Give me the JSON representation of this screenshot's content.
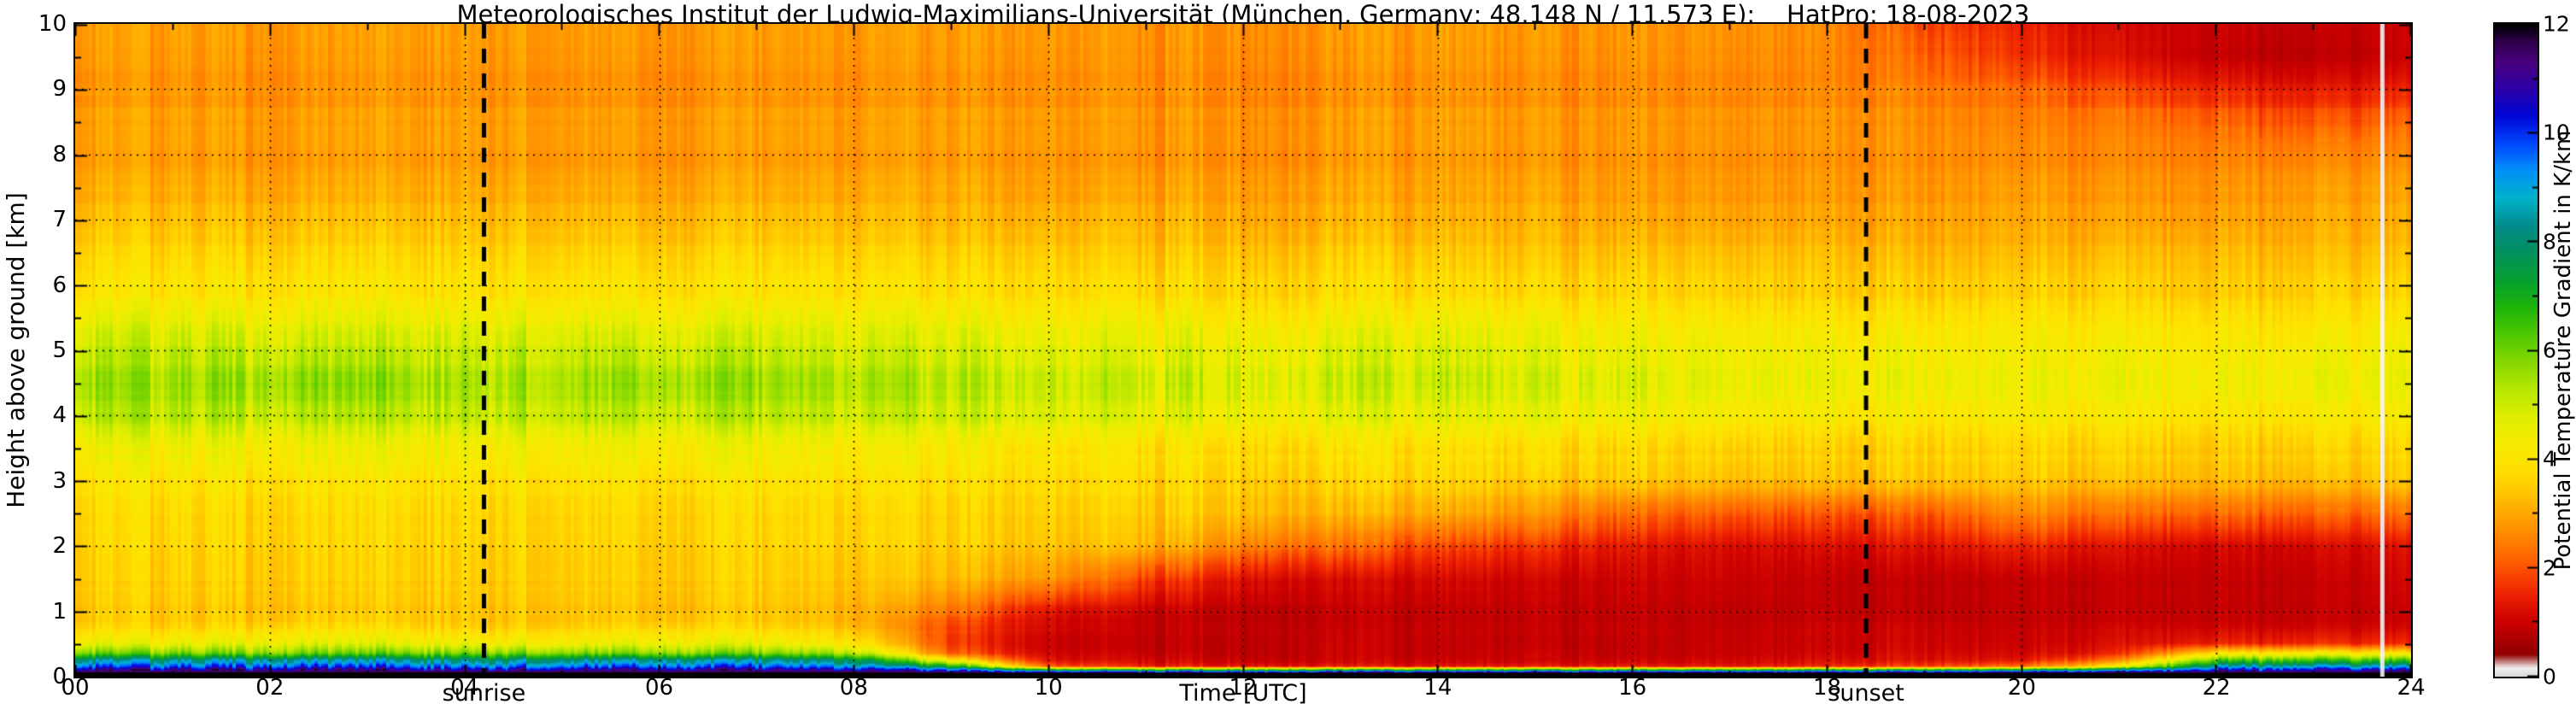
{
  "chart_data": {
    "type": "heatmap",
    "title": "Meteorologisches Institut der Ludwig-Maximilians-Universität (München, Germany; 48.148 N / 11.573 E):    HatPro: 18-08-2023",
    "xlabel": "Time [UTC]",
    "ylabel": "Height above ground [km]",
    "xlim": [
      0,
      24
    ],
    "ylim": [
      0,
      10
    ],
    "grid": "dotted",
    "x_major_ticks": [
      0,
      2,
      4,
      6,
      8,
      10,
      12,
      14,
      16,
      18,
      20,
      22,
      24
    ],
    "x_tick_labels": [
      "00",
      "02",
      "04",
      "06",
      "08",
      "10",
      "12",
      "14",
      "16",
      "18",
      "20",
      "22",
      "24"
    ],
    "x_minor_step": 1,
    "y_major_ticks": [
      0,
      1,
      2,
      3,
      4,
      5,
      6,
      7,
      8,
      9,
      10
    ],
    "y_tick_labels": [
      "0",
      "1",
      "2",
      "3",
      "4",
      "5",
      "6",
      "7",
      "8",
      "9",
      "10"
    ],
    "y_minor_step": 0.5,
    "colorbar": {
      "label": "Potential Temperature Gradient in K/km",
      "min": 0,
      "max": 12,
      "ticks": [
        0,
        2,
        4,
        6,
        8,
        10,
        12
      ],
      "tick_labels": [
        "0",
        "2",
        "4",
        "6",
        "8",
        "10",
        "12"
      ]
    },
    "colormap_stops": [
      [
        0.0,
        "#d9d9d9"
      ],
      [
        0.15,
        "#efefef"
      ],
      [
        0.4,
        "#900000"
      ],
      [
        1.0,
        "#cc0000"
      ],
      [
        1.5,
        "#ee2200"
      ],
      [
        2.1,
        "#ff5f00"
      ],
      [
        2.7,
        "#ff9100"
      ],
      [
        3.3,
        "#ffbf00"
      ],
      [
        3.8,
        "#ffdf00"
      ],
      [
        4.3,
        "#f6ec00"
      ],
      [
        4.8,
        "#dfee00"
      ],
      [
        5.3,
        "#b4e600"
      ],
      [
        5.8,
        "#84d800"
      ],
      [
        6.3,
        "#4cc800"
      ],
      [
        6.8,
        "#1db40a"
      ],
      [
        7.3,
        "#05a032"
      ],
      [
        7.8,
        "#00915f"
      ],
      [
        8.3,
        "#008c8c"
      ],
      [
        8.8,
        "#00b2cc"
      ],
      [
        9.3,
        "#0092f8"
      ],
      [
        9.8,
        "#0048ff"
      ],
      [
        10.3,
        "#0008d8"
      ],
      [
        10.8,
        "#2a00a8"
      ],
      [
        11.3,
        "#4b0080"
      ],
      [
        11.7,
        "#2e0048"
      ],
      [
        12.0,
        "#000000"
      ]
    ],
    "annotations": [
      {
        "type": "vline",
        "x": 4.2,
        "label": "sunrise",
        "style": "dashed"
      },
      {
        "type": "vline",
        "x": 18.4,
        "label": "sunset",
        "style": "dashed"
      }
    ],
    "gap_times": [
      23.7
    ],
    "x": [
      0,
      1,
      2,
      3,
      4,
      5,
      6,
      7,
      8,
      9,
      10,
      11,
      12,
      13,
      14,
      15,
      16,
      17,
      18,
      19,
      20,
      21,
      22,
      23,
      24
    ],
    "y": [
      0,
      0.05,
      0.15,
      0.25,
      0.35,
      0.5,
      0.75,
      1,
      1.5,
      2,
      2.5,
      3,
      3.5,
      4,
      4.5,
      5,
      5.5,
      6,
      6.5,
      7,
      7.5,
      8,
      8.5,
      9,
      9.5,
      10
    ],
    "values": [
      [
        12,
        12,
        12,
        12,
        12,
        12,
        12,
        12,
        12,
        12,
        12,
        12,
        12,
        12,
        12,
        12,
        12,
        12,
        12,
        12,
        12,
        12,
        12,
        12,
        12
      ],
      [
        12,
        12,
        12,
        12,
        12,
        12,
        12,
        12,
        12,
        12,
        12,
        12,
        12,
        12,
        12,
        12,
        12,
        12,
        12,
        12,
        12,
        12,
        12,
        12,
        12
      ],
      [
        9.5,
        9.4,
        9.5,
        9.6,
        9.5,
        9.4,
        9.5,
        9.5,
        9.2,
        7.0,
        2.0,
        1.4,
        1.3,
        1.3,
        1.2,
        1.3,
        1.3,
        1.3,
        1.5,
        1.8,
        2.2,
        4.0,
        8.4,
        8.6,
        8.4
      ],
      [
        8.3,
        8.2,
        8.3,
        8.4,
        8.3,
        8.2,
        8.3,
        8.3,
        7.9,
        4.0,
        1.3,
        1.1,
        1.0,
        1.0,
        1.0,
        1.0,
        1.0,
        1.1,
        1.2,
        1.3,
        1.3,
        2.4,
        6.2,
        6.4,
        6.2
      ],
      [
        6.1,
        6.0,
        5.9,
        6.1,
        6.2,
        6.0,
        5.9,
        6.0,
        5.6,
        2.2,
        1.1,
        1.0,
        0.9,
        1.0,
        0.9,
        1.0,
        0.9,
        1.0,
        1.1,
        1.2,
        1.1,
        1.5,
        4.0,
        4.2,
        4.0
      ],
      [
        4.6,
        4.5,
        4.6,
        4.7,
        4.6,
        4.5,
        4.6,
        4.6,
        4.2,
        1.8,
        1.0,
        0.9,
        0.9,
        1.0,
        0.9,
        0.9,
        0.9,
        1.0,
        1.0,
        1.1,
        1.0,
        1.2,
        1.5,
        1.6,
        1.5
      ],
      [
        3.6,
        3.5,
        3.6,
        3.7,
        3.6,
        3.5,
        3.6,
        3.6,
        3.3,
        1.8,
        1.1,
        0.9,
        0.9,
        0.9,
        0.9,
        0.9,
        0.9,
        0.9,
        1.0,
        1.0,
        0.9,
        1.0,
        1.0,
        1.0,
        1.0
      ],
      [
        3.4,
        3.4,
        3.3,
        3.4,
        3.5,
        3.4,
        3.3,
        3.4,
        3.2,
        2.4,
        1.3,
        1.0,
        0.9,
        0.9,
        0.9,
        0.9,
        0.9,
        0.9,
        0.9,
        0.9,
        0.9,
        0.9,
        0.9,
        0.9,
        0.9
      ],
      [
        3.5,
        3.5,
        3.4,
        3.5,
        3.6,
        3.5,
        3.4,
        3.5,
        3.4,
        3.2,
        2.8,
        1.8,
        1.3,
        1.1,
        1.1,
        1.0,
        1.0,
        1.0,
        0.9,
        0.9,
        0.9,
        0.9,
        0.9,
        0.9,
        1.0
      ],
      [
        3.6,
        3.6,
        3.5,
        3.6,
        3.7,
        3.6,
        3.5,
        3.6,
        3.6,
        3.5,
        3.4,
        3.2,
        2.6,
        2.2,
        1.8,
        1.6,
        1.3,
        1.2,
        1.2,
        1.3,
        1.5,
        1.2,
        1.1,
        1.1,
        1.2
      ],
      [
        3.7,
        3.7,
        3.6,
        3.7,
        3.8,
        3.7,
        3.6,
        3.7,
        3.7,
        3.6,
        3.6,
        3.5,
        3.4,
        3.1,
        3.0,
        2.7,
        2.2,
        2.1,
        2.0,
        2.1,
        2.6,
        2.2,
        2.2,
        2.1,
        2.2
      ],
      [
        3.9,
        3.9,
        3.8,
        3.9,
        4.0,
        3.9,
        3.8,
        3.9,
        3.9,
        3.8,
        3.8,
        3.7,
        3.6,
        3.5,
        3.6,
        3.4,
        3.4,
        3.3,
        3.3,
        3.4,
        3.4,
        3.2,
        3.2,
        3.2,
        3.3
      ],
      [
        4.4,
        4.4,
        4.3,
        4.4,
        4.5,
        4.4,
        4.3,
        4.4,
        4.3,
        4.2,
        4.1,
        4.0,
        3.9,
        3.9,
        3.9,
        3.8,
        3.7,
        3.7,
        3.6,
        3.7,
        3.7,
        3.6,
        3.5,
        3.6,
        3.6
      ],
      [
        5.2,
        5.2,
        5.1,
        5.2,
        5.3,
        5.2,
        5.1,
        5.2,
        5.1,
        5.0,
        4.9,
        4.7,
        4.6,
        4.6,
        4.6,
        4.5,
        4.4,
        4.3,
        4.2,
        4.2,
        4.2,
        4.1,
        4.0,
        4.1,
        4.1
      ],
      [
        5.5,
        5.4,
        5.5,
        5.6,
        5.5,
        5.4,
        5.5,
        5.5,
        5.4,
        5.2,
        5.1,
        5.0,
        4.9,
        4.9,
        5.0,
        4.8,
        4.7,
        4.6,
        4.5,
        4.5,
        4.4,
        4.4,
        4.3,
        4.4,
        4.4
      ],
      [
        5.1,
        5.1,
        5.0,
        5.1,
        5.2,
        5.1,
        5.0,
        5.1,
        5.0,
        4.9,
        4.8,
        4.7,
        4.7,
        4.7,
        4.8,
        4.6,
        4.5,
        4.5,
        4.4,
        4.4,
        4.3,
        4.3,
        4.2,
        4.3,
        4.3
      ],
      [
        4.4,
        4.4,
        4.3,
        4.4,
        4.5,
        4.4,
        4.3,
        4.4,
        4.4,
        4.3,
        4.2,
        4.2,
        4.1,
        4.1,
        4.2,
        4.1,
        4.0,
        4.0,
        3.9,
        3.9,
        3.9,
        3.8,
        3.8,
        3.8,
        3.9
      ],
      [
        3.9,
        3.9,
        3.8,
        3.9,
        4.0,
        3.9,
        3.8,
        3.9,
        3.9,
        3.8,
        3.8,
        3.7,
        3.7,
        3.7,
        3.7,
        3.6,
        3.6,
        3.6,
        3.5,
        3.5,
        3.5,
        3.5,
        3.4,
        3.5,
        3.5
      ],
      [
        3.6,
        3.6,
        3.5,
        3.6,
        3.7,
        3.6,
        3.5,
        3.6,
        3.6,
        3.5,
        3.5,
        3.4,
        3.4,
        3.4,
        3.4,
        3.3,
        3.3,
        3.3,
        3.3,
        3.2,
        3.2,
        3.2,
        3.2,
        3.2,
        3.2
      ],
      [
        3.3,
        3.3,
        3.2,
        3.3,
        3.4,
        3.3,
        3.2,
        3.3,
        3.3,
        3.2,
        3.2,
        3.2,
        3.1,
        3.1,
        3.1,
        3.1,
        3.0,
        3.0,
        3.0,
        3.0,
        3.0,
        2.9,
        2.9,
        3.0,
        3.0
      ],
      [
        3.0,
        3.0,
        2.9,
        3.0,
        3.1,
        3.0,
        2.9,
        3.0,
        3.0,
        3.0,
        2.9,
        2.9,
        2.9,
        2.9,
        2.9,
        2.9,
        2.8,
        2.8,
        2.8,
        2.8,
        2.8,
        2.7,
        2.7,
        2.8,
        2.8
      ],
      [
        2.8,
        2.8,
        2.7,
        2.8,
        2.9,
        2.8,
        2.7,
        2.8,
        2.8,
        2.8,
        2.8,
        2.7,
        2.7,
        2.7,
        2.8,
        2.7,
        2.7,
        2.7,
        2.7,
        2.7,
        2.6,
        2.5,
        2.5,
        2.5,
        2.5
      ],
      [
        2.9,
        2.9,
        2.8,
        2.9,
        3.0,
        2.9,
        2.8,
        2.9,
        2.9,
        2.9,
        2.9,
        2.8,
        2.8,
        2.8,
        2.9,
        2.8,
        2.8,
        2.8,
        2.8,
        2.7,
        2.5,
        2.4,
        2.2,
        2.0,
        2.1
      ],
      [
        2.7,
        2.7,
        2.6,
        2.7,
        2.8,
        2.7,
        2.6,
        2.7,
        2.7,
        2.7,
        2.7,
        2.7,
        2.6,
        2.6,
        2.7,
        2.6,
        2.6,
        2.6,
        2.6,
        2.5,
        2.2,
        1.8,
        1.5,
        1.3,
        1.4
      ],
      [
        2.8,
        2.8,
        2.7,
        2.8,
        2.9,
        2.8,
        2.7,
        2.8,
        2.8,
        2.8,
        2.8,
        2.7,
        2.7,
        2.7,
        2.8,
        2.7,
        2.7,
        2.7,
        2.6,
        2.2,
        1.6,
        1.2,
        0.9,
        0.8,
        0.9
      ],
      [
        2.9,
        2.9,
        2.8,
        2.9,
        3.0,
        2.9,
        2.8,
        2.9,
        2.9,
        2.9,
        2.9,
        2.8,
        2.8,
        2.8,
        2.9,
        2.8,
        2.8,
        2.8,
        2.7,
        2.0,
        1.5,
        1.1,
        1.0,
        0.9,
        1.0
      ]
    ]
  }
}
